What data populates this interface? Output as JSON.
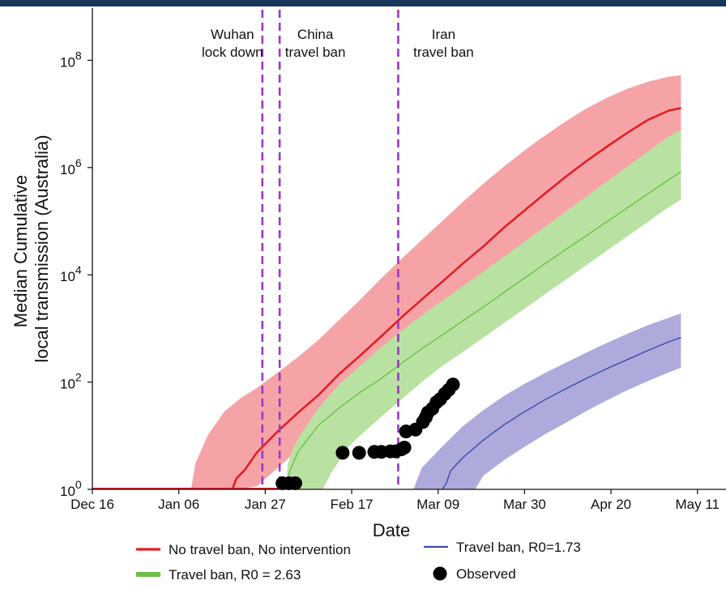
{
  "colors": {
    "no_intervention_line": "#e01f26",
    "no_intervention_band": "#f5a3a6",
    "r263_line": "#6cc04a",
    "r263_band": "#b9e2a2",
    "r173_line": "#3b4ba6",
    "r173_band": "#aeaadb",
    "vline": "#9b37c9",
    "observed": "#000000",
    "header_bar": "#17355b"
  },
  "chart_data": {
    "type": "line",
    "title": "",
    "xlabel": "Date",
    "ylabel": [
      "Median Cumulative",
      "local transmission (Australia)"
    ],
    "yscale": "log",
    "ylim": [
      1,
      100000000
    ],
    "x_range": [
      "Dec 16",
      "May 12"
    ],
    "x_ticks": [
      "Dec 16",
      "Jan 06",
      "Jan 27",
      "Feb 17",
      "Mar 09",
      "Mar 30",
      "Apr 20",
      "May 11"
    ],
    "y_ticks": [
      {
        "base": "10",
        "exp": "0",
        "value": 1
      },
      {
        "base": "10",
        "exp": "2",
        "value": 100
      },
      {
        "base": "10",
        "exp": "4",
        "value": 10000
      },
      {
        "base": "10",
        "exp": "6",
        "value": 1000000
      },
      {
        "base": "10",
        "exp": "8",
        "value": 100000000
      }
    ],
    "legend_position": "bottom",
    "vlines": [
      {
        "day": 41.3,
        "lines": [
          "Wuhan",
          "lock down"
        ]
      },
      {
        "day": 45.5,
        "lines": [
          "China",
          "travel ban"
        ]
      },
      {
        "day": 74.3,
        "lines": [
          "Iran",
          "travel ban"
        ]
      }
    ],
    "series": [
      {
        "name": "No travel ban, No intervention",
        "kind": "line_band",
        "line": [
          [
            17,
            1
          ],
          [
            25,
            1
          ],
          [
            34,
            1
          ],
          [
            35,
            1.6
          ],
          [
            37,
            2.3
          ],
          [
            40,
            4.9
          ],
          [
            45,
            12
          ],
          [
            50,
            27
          ],
          [
            55,
            58
          ],
          [
            60,
            142
          ],
          [
            65,
            309
          ],
          [
            70,
            692
          ],
          [
            75,
            1585
          ],
          [
            80,
            3467
          ],
          [
            85,
            7413
          ],
          [
            90,
            16218
          ],
          [
            95,
            33884
          ],
          [
            100,
            75858
          ],
          [
            105,
            158489
          ],
          [
            110,
            331131
          ],
          [
            115,
            676083
          ],
          [
            120,
            1318257
          ],
          [
            125,
            2454709
          ],
          [
            130,
            4466836
          ],
          [
            135,
            7762471
          ],
          [
            140,
            11481536
          ],
          [
            143,
            12882496
          ]
        ],
        "upper": [
          [
            24,
            1
          ],
          [
            25,
            3
          ],
          [
            28,
            10
          ],
          [
            32,
            28
          ],
          [
            36,
            50
          ],
          [
            40,
            78
          ],
          [
            45,
            151
          ],
          [
            50,
            295
          ],
          [
            55,
            617
          ],
          [
            60,
            1445
          ],
          [
            65,
            3388
          ],
          [
            70,
            8318
          ],
          [
            75,
            19498
          ],
          [
            80,
            44668
          ],
          [
            85,
            100000
          ],
          [
            90,
            229087
          ],
          [
            95,
            501187
          ],
          [
            100,
            1047129
          ],
          [
            105,
            2089296
          ],
          [
            110,
            3981072
          ],
          [
            115,
            7244360
          ],
          [
            120,
            12589254
          ],
          [
            125,
            19952623
          ],
          [
            130,
            29512092
          ],
          [
            135,
            39810717
          ],
          [
            140,
            49545019
          ],
          [
            143,
            52480746
          ]
        ],
        "lower": [
          [
            35,
            1
          ],
          [
            40,
            1.15
          ],
          [
            45,
            2.5
          ],
          [
            50,
            5.6
          ],
          [
            55,
            11
          ],
          [
            60,
            22
          ],
          [
            65,
            43
          ],
          [
            70,
            89
          ],
          [
            75,
            186
          ],
          [
            80,
            389
          ],
          [
            85,
            832
          ],
          [
            90,
            1778
          ],
          [
            95,
            3715
          ],
          [
            100,
            7762
          ],
          [
            105,
            16218
          ],
          [
            110,
            33884
          ],
          [
            115,
            70795
          ],
          [
            120,
            144544
          ],
          [
            125,
            295121
          ],
          [
            130,
            588844
          ],
          [
            135,
            1148154
          ],
          [
            140,
            2041738
          ],
          [
            143,
            2454709
          ]
        ]
      },
      {
        "name": "Travel ban, R0 = 2.63",
        "kind": "line_band",
        "line": [
          [
            46,
            1
          ],
          [
            47,
            1.2
          ],
          [
            48,
            2.2
          ],
          [
            50,
            5.1
          ],
          [
            55,
            15.8
          ],
          [
            60,
            33
          ],
          [
            65,
            64
          ],
          [
            70,
            114
          ],
          [
            75,
            220
          ],
          [
            80,
            416
          ],
          [
            85,
            758
          ],
          [
            90,
            1380
          ],
          [
            95,
            2512
          ],
          [
            100,
            4677
          ],
          [
            105,
            8710
          ],
          [
            110,
            16218
          ],
          [
            115,
            29512
          ],
          [
            120,
            53703
          ],
          [
            125,
            97724
          ],
          [
            130,
            177828
          ],
          [
            135,
            323594
          ],
          [
            140,
            588844
          ],
          [
            143,
            831764
          ]
        ],
        "upper": [
          [
            47,
            1
          ],
          [
            47.5,
            3
          ],
          [
            48.5,
            5.3
          ],
          [
            50,
            9
          ],
          [
            55,
            33
          ],
          [
            60,
            91
          ],
          [
            65,
            200
          ],
          [
            70,
            437
          ],
          [
            75,
            891
          ],
          [
            80,
            1738
          ],
          [
            85,
            3311
          ],
          [
            90,
            6166
          ],
          [
            95,
            11482
          ],
          [
            100,
            21878
          ],
          [
            105,
            41687
          ],
          [
            110,
            79433
          ],
          [
            115,
            151356
          ],
          [
            120,
            288403
          ],
          [
            125,
            549541
          ],
          [
            130,
            1047129
          ],
          [
            135,
            1995262
          ],
          [
            140,
            3801894
          ],
          [
            143,
            5011872
          ]
        ],
        "lower": [
          [
            56,
            1
          ],
          [
            58,
            2
          ],
          [
            62,
            6
          ],
          [
            65,
            10
          ],
          [
            70,
            22
          ],
          [
            75,
            47
          ],
          [
            80,
            100
          ],
          [
            85,
            200
          ],
          [
            90,
            363
          ],
          [
            95,
            676
          ],
          [
            100,
            1259
          ],
          [
            105,
            2344
          ],
          [
            110,
            4365
          ],
          [
            115,
            8128
          ],
          [
            120,
            15136
          ],
          [
            125,
            28184
          ],
          [
            130,
            52481
          ],
          [
            135,
            97724
          ],
          [
            140,
            181970
          ],
          [
            143,
            251189
          ]
        ]
      },
      {
        "name": "Travel ban, R0=1.73",
        "kind": "line_band",
        "line": [
          [
            85,
            1
          ],
          [
            86,
            1.3
          ],
          [
            87,
            2.2
          ],
          [
            90,
            3.9
          ],
          [
            95,
            8.3
          ],
          [
            100,
            16
          ],
          [
            105,
            28
          ],
          [
            110,
            47
          ],
          [
            115,
            75
          ],
          [
            120,
            117
          ],
          [
            125,
            178
          ],
          [
            130,
            263
          ],
          [
            135,
            389
          ],
          [
            140,
            562
          ],
          [
            143,
            676
          ]
        ],
        "upper": [
          [
            78,
            1
          ],
          [
            80,
            2.5
          ],
          [
            85,
            6.3
          ],
          [
            90,
            15
          ],
          [
            95,
            30
          ],
          [
            100,
            55
          ],
          [
            105,
            93
          ],
          [
            110,
            148
          ],
          [
            115,
            229
          ],
          [
            120,
            355
          ],
          [
            125,
            537
          ],
          [
            130,
            794
          ],
          [
            135,
            1148
          ],
          [
            140,
            1585
          ],
          [
            143,
            1905
          ]
        ],
        "lower": [
          [
            93,
            1
          ],
          [
            95,
            1.8
          ],
          [
            100,
            3.5
          ],
          [
            105,
            6.2
          ],
          [
            110,
            10.7
          ],
          [
            115,
            17.4
          ],
          [
            120,
            28.8
          ],
          [
            125,
            45.7
          ],
          [
            130,
            70.8
          ],
          [
            135,
            105
          ],
          [
            140,
            151
          ],
          [
            143,
            186
          ]
        ]
      },
      {
        "name": "Observed",
        "kind": "scatter",
        "points": [
          [
            46.2,
            1.3
          ],
          [
            47.8,
            1.3
          ],
          [
            49.3,
            1.3
          ],
          [
            60.8,
            4.8
          ],
          [
            64.8,
            4.8
          ],
          [
            68.5,
            5.0
          ],
          [
            70.2,
            5.0
          ],
          [
            72.4,
            5.1
          ],
          [
            73.7,
            5.1
          ],
          [
            75.1,
            5.6
          ],
          [
            75.8,
            6.0
          ],
          [
            76.2,
            12
          ],
          [
            78.5,
            13
          ],
          [
            80.3,
            18
          ],
          [
            81.0,
            22
          ],
          [
            81.5,
            27
          ],
          [
            82.6,
            32
          ],
          [
            83.6,
            42
          ],
          [
            84.5,
            48
          ],
          [
            85.6,
            60
          ],
          [
            86.6,
            72
          ],
          [
            87.6,
            90
          ]
        ]
      }
    ]
  }
}
